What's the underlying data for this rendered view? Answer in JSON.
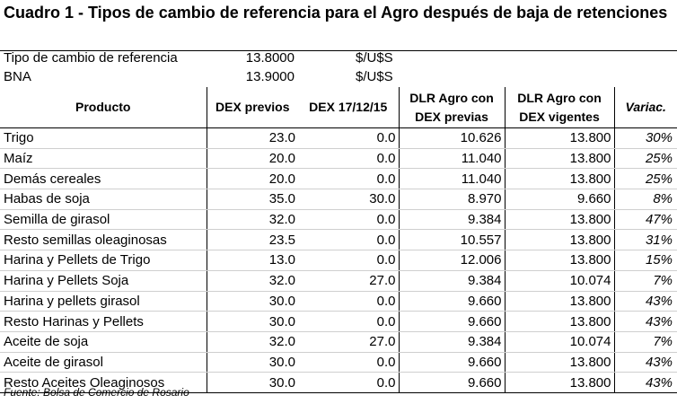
{
  "title": "Cuadro 1 - Tipos de cambio de referencia para el Agro después de baja de retenciones",
  "reference": [
    {
      "label": "Tipo de cambio de referencia",
      "value": "13.8000",
      "unit": "$/U$S"
    },
    {
      "label": "BNA",
      "value": "13.9000",
      "unit": "$/U$S"
    }
  ],
  "table": {
    "headers": {
      "producto": "Producto",
      "dex_previos": "DEX previos",
      "dex_new": "DEX 17/12/15",
      "dlr_previas": "DLR Agro con DEX previas",
      "dlr_vigentes": "DLR Agro con DEX vigentes",
      "variac": "Variac."
    },
    "rows": [
      {
        "producto": "Trigo",
        "dex_previos": "23.0",
        "dex_new": "0.0",
        "dlr_previas": "10.626",
        "dlr_vigentes": "13.800",
        "variac": "30%"
      },
      {
        "producto": "Maíz",
        "dex_previos": "20.0",
        "dex_new": "0.0",
        "dlr_previas": "11.040",
        "dlr_vigentes": "13.800",
        "variac": "25%"
      },
      {
        "producto": "Demás cereales",
        "dex_previos": "20.0",
        "dex_new": "0.0",
        "dlr_previas": "11.040",
        "dlr_vigentes": "13.800",
        "variac": "25%"
      },
      {
        "producto": "Habas de soja",
        "dex_previos": "35.0",
        "dex_new": "30.0",
        "dlr_previas": "8.970",
        "dlr_vigentes": "9.660",
        "variac": "8%"
      },
      {
        "producto": "Semilla de girasol",
        "dex_previos": "32.0",
        "dex_new": "0.0",
        "dlr_previas": "9.384",
        "dlr_vigentes": "13.800",
        "variac": "47%"
      },
      {
        "producto": "Resto semillas oleaginosas",
        "dex_previos": "23.5",
        "dex_new": "0.0",
        "dlr_previas": "10.557",
        "dlr_vigentes": "13.800",
        "variac": "31%"
      },
      {
        "producto": "Harina y Pellets de Trigo",
        "dex_previos": "13.0",
        "dex_new": "0.0",
        "dlr_previas": "12.006",
        "dlr_vigentes": "13.800",
        "variac": "15%"
      },
      {
        "producto": "Harina y Pellets Soja",
        "dex_previos": "32.0",
        "dex_new": "27.0",
        "dlr_previas": "9.384",
        "dlr_vigentes": "10.074",
        "variac": "7%"
      },
      {
        "producto": "Harina y pellets  girasol",
        "dex_previos": "30.0",
        "dex_new": "0.0",
        "dlr_previas": "9.660",
        "dlr_vigentes": "13.800",
        "variac": "43%"
      },
      {
        "producto": "Resto Harinas y Pellets",
        "dex_previos": "30.0",
        "dex_new": "0.0",
        "dlr_previas": "9.660",
        "dlr_vigentes": "13.800",
        "variac": "43%"
      },
      {
        "producto": "Aceite de soja",
        "dex_previos": "32.0",
        "dex_new": "27.0",
        "dlr_previas": "9.384",
        "dlr_vigentes": "10.074",
        "variac": "7%"
      },
      {
        "producto": "Aceite de girasol",
        "dex_previos": "30.0",
        "dex_new": "0.0",
        "dlr_previas": "9.660",
        "dlr_vigentes": "13.800",
        "variac": "43%"
      },
      {
        "producto": "Resto Aceites Oleaginosos",
        "dex_previos": "30.0",
        "dex_new": "0.0",
        "dlr_previas": "9.660",
        "dlr_vigentes": "13.800",
        "variac": "43%"
      }
    ]
  },
  "source": "Fuente: Bolsa de Comercio de Rosario"
}
